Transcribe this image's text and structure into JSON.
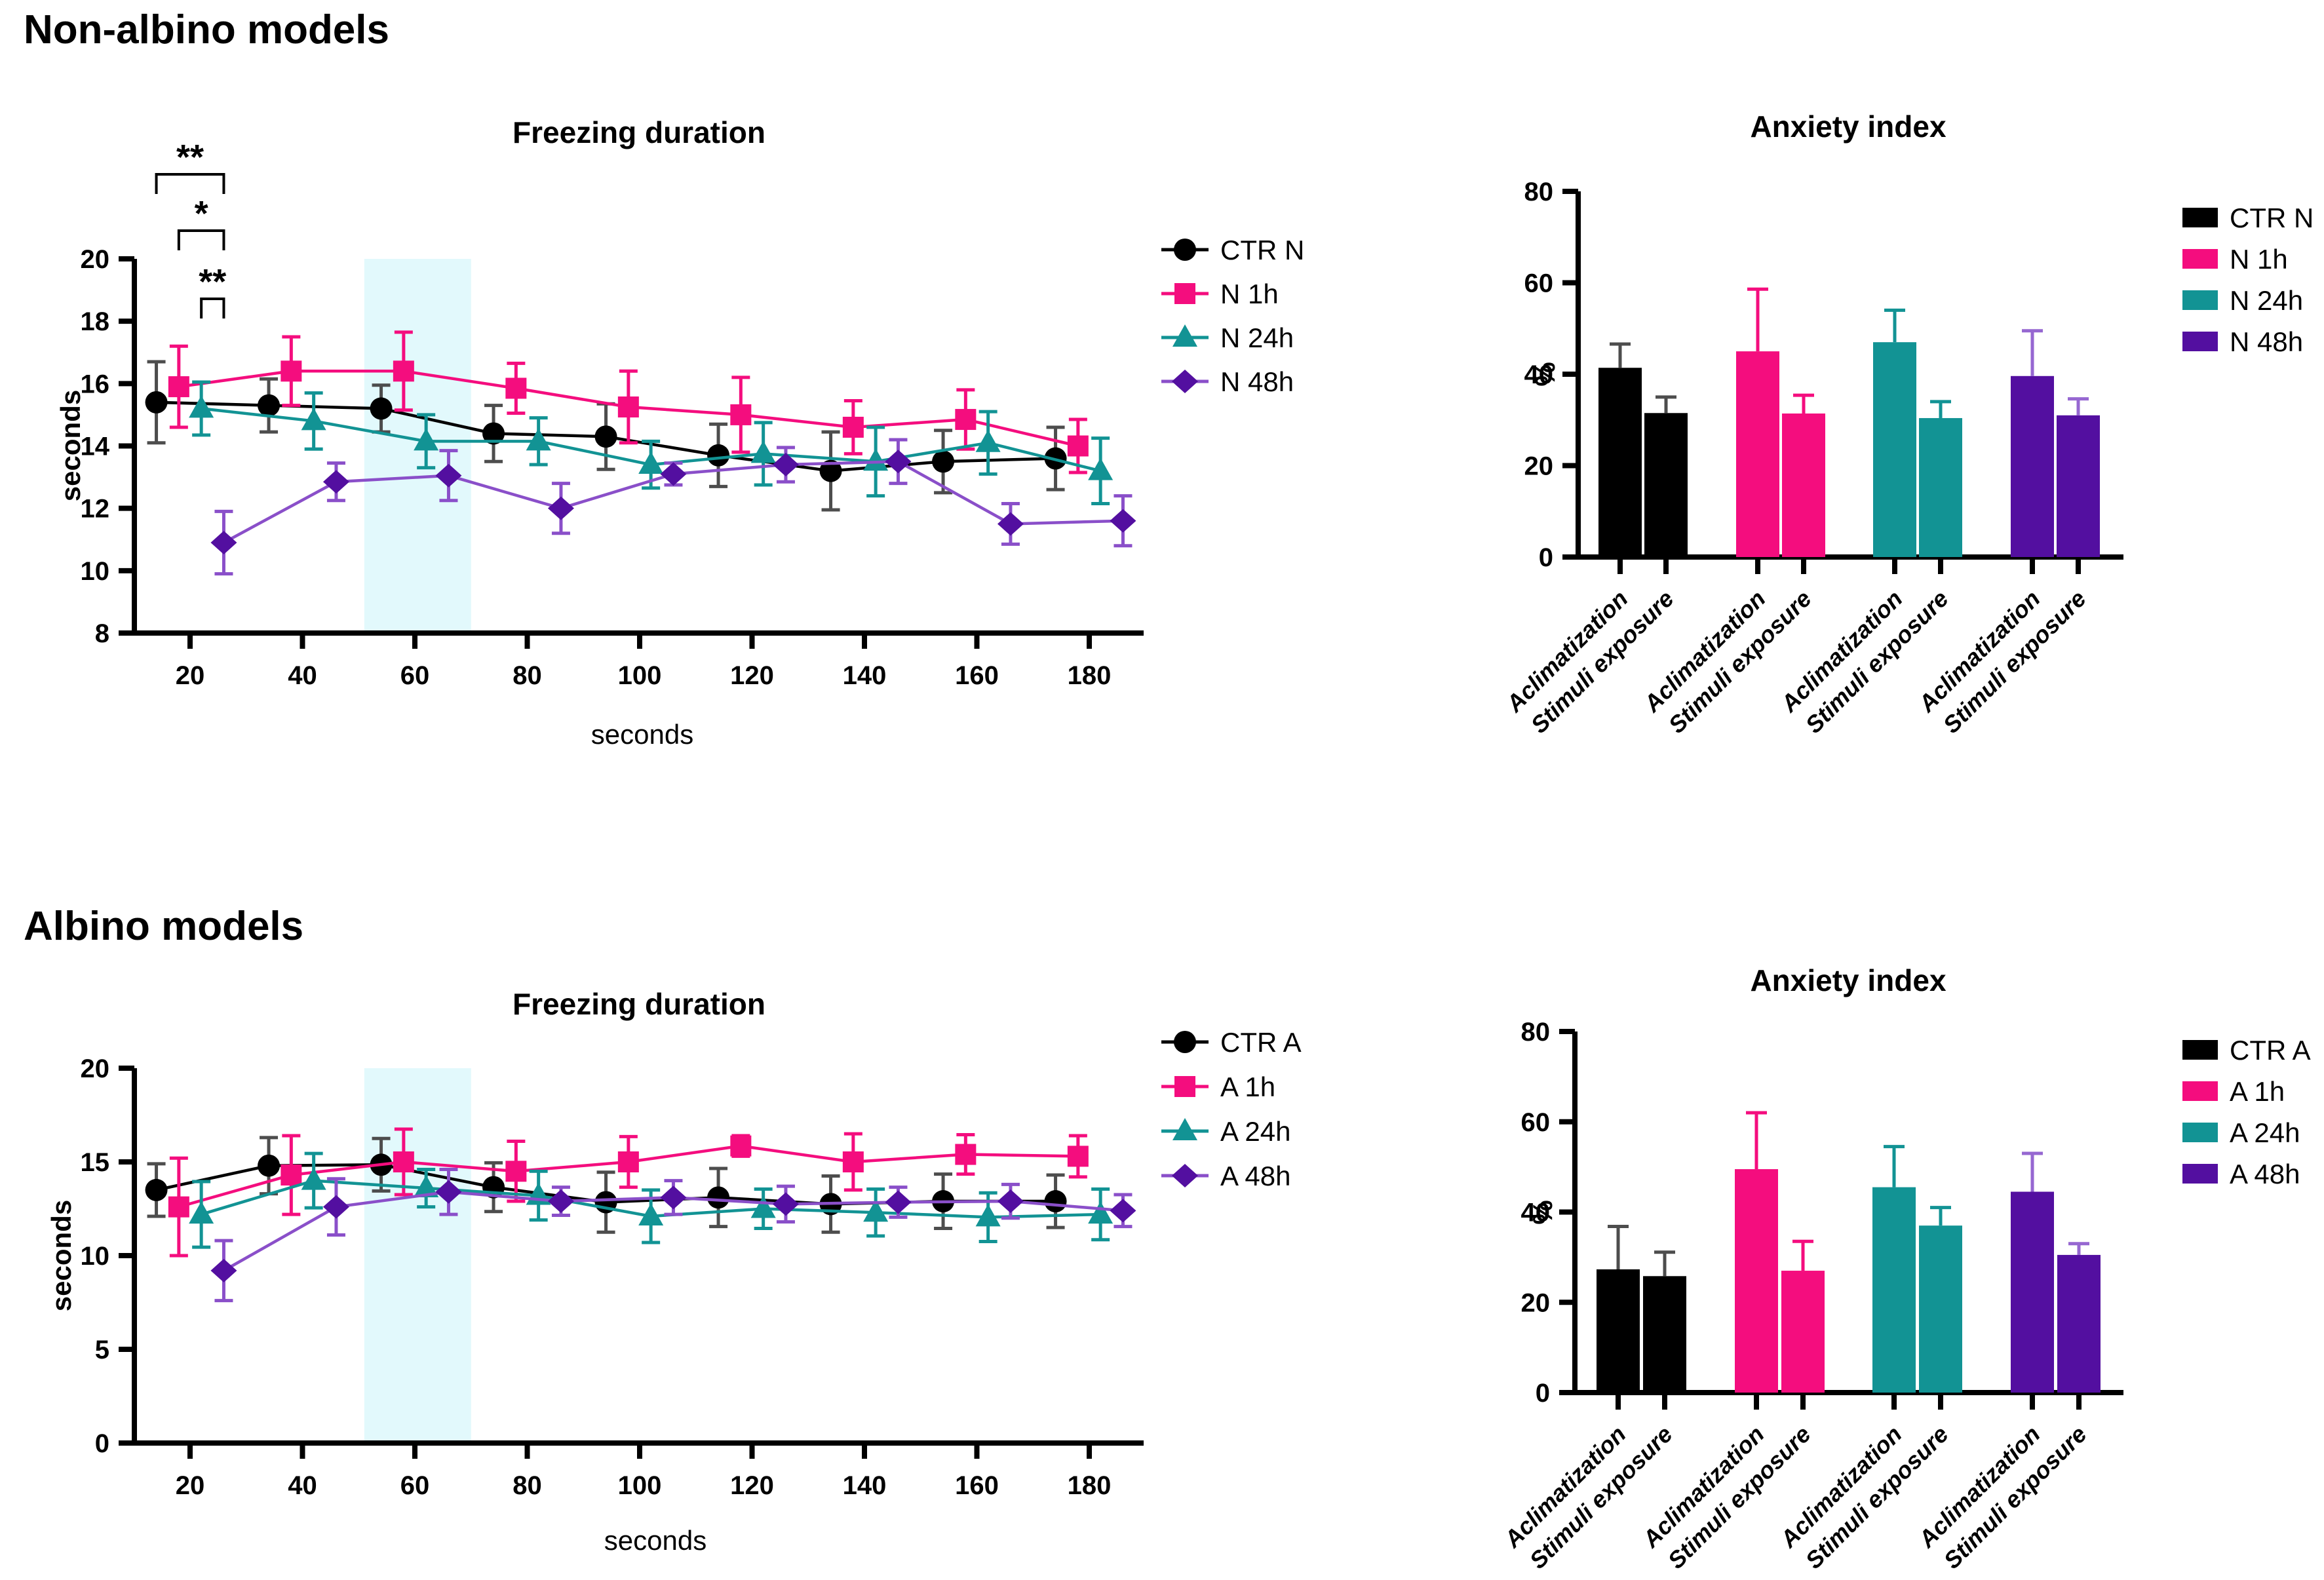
{
  "page": {
    "heading_nonalbino": "Non-albino models",
    "heading_albino": "Albino models"
  },
  "colors": {
    "black": "#000000",
    "black_err": "#4d4d4d",
    "pink": "#F40D7E",
    "teal": "#129394",
    "purple": "#530FA0",
    "purple_line": "#8A4FC9",
    "purple_err": "#9667D1",
    "band": "#E2F9FC"
  },
  "chart_data": [
    {
      "id": "nonalbino-freezing",
      "type": "line",
      "title": "Freezing duration",
      "xlabel": "seconds",
      "ylabel": "seconds",
      "x": [
        20,
        40,
        60,
        80,
        100,
        120,
        140,
        160,
        180
      ],
      "xticks": [
        20,
        40,
        60,
        80,
        100,
        120,
        140,
        160,
        180
      ],
      "yticks": [
        8,
        10,
        12,
        14,
        16,
        18,
        20
      ],
      "ylim": [
        8,
        20
      ],
      "xlim": [
        10,
        190
      ],
      "grid": false,
      "legend_position": "right",
      "shaded_band_x": [
        51,
        70
      ],
      "series": [
        {
          "name": "CTR N",
          "marker": "circle",
          "color": "#000000",
          "line_color": "#000000",
          "err_color": "#4d4d4d",
          "x_offset": -6,
          "values": [
            15.4,
            15.3,
            15.2,
            14.4,
            14.3,
            13.7,
            13.2,
            13.5,
            13.6
          ],
          "errors": [
            1.3,
            0.85,
            0.75,
            0.9,
            1.05,
            1.0,
            1.25,
            1.0,
            1.0
          ]
        },
        {
          "name": "N 1h",
          "marker": "square",
          "color": "#F40D7E",
          "line_color": "#F40D7E",
          "err_color": "#F40D7E",
          "x_offset": -2,
          "values": [
            15.9,
            16.4,
            16.4,
            15.85,
            15.25,
            15.0,
            14.6,
            14.85,
            14.0
          ],
          "errors": [
            1.3,
            1.1,
            1.25,
            0.8,
            1.15,
            1.2,
            0.85,
            0.95,
            0.85
          ]
        },
        {
          "name": "N 24h",
          "marker": "triangle",
          "color": "#129394",
          "line_color": "#129394",
          "err_color": "#129394",
          "x_offset": 2,
          "values": [
            15.2,
            14.8,
            14.15,
            14.15,
            13.4,
            13.75,
            13.5,
            14.1,
            13.2
          ],
          "errors": [
            0.85,
            0.9,
            0.85,
            0.75,
            0.75,
            1.0,
            1.1,
            1.0,
            1.05
          ]
        },
        {
          "name": "N 48h",
          "marker": "diamond",
          "color": "#530FA0",
          "line_color": "#8A4FC9",
          "err_color": "#8A4FC9",
          "x_offset": 6,
          "values": [
            10.9,
            12.85,
            13.05,
            12.0,
            13.1,
            13.4,
            13.5,
            11.5,
            11.6
          ],
          "errors": [
            1.0,
            0.6,
            0.8,
            0.8,
            0.35,
            0.55,
            0.7,
            0.65,
            0.8
          ]
        }
      ],
      "annotations": [
        {
          "type": "bracket",
          "label": "**",
          "x1": 14,
          "x2": 26,
          "level": 1
        },
        {
          "type": "bracket",
          "label": "*",
          "x1": 18,
          "x2": 26,
          "level": 2
        },
        {
          "type": "bracket",
          "label": "**",
          "x1": 22,
          "x2": 26,
          "level": 3
        }
      ]
    },
    {
      "id": "nonalbino-anxiety",
      "type": "bar",
      "title": "Anxiety index",
      "ylabel": "%",
      "ylim": [
        0,
        80
      ],
      "yticks": [
        0,
        20,
        40,
        60,
        80
      ],
      "grid": false,
      "legend_position": "right",
      "categories": [
        "Aclimatization",
        "Stimuli exposure"
      ],
      "groups": [
        {
          "name": "CTR N",
          "color": "#000000",
          "err_color": "#4d4d4d",
          "values": [
            41.4,
            31.5
          ],
          "errors": [
            5.2,
            3.5
          ]
        },
        {
          "name": "N 1h",
          "color": "#F40D7E",
          "err_color": "#F40D7E",
          "values": [
            45.0,
            31.4
          ],
          "errors": [
            13.6,
            4.0
          ]
        },
        {
          "name": "N 24h",
          "color": "#129394",
          "err_color": "#129394",
          "values": [
            47.0,
            30.4
          ],
          "errors": [
            7.0,
            3.6
          ]
        },
        {
          "name": "N 48h",
          "color": "#530FA0",
          "err_color": "#9667D1",
          "values": [
            39.6,
            31.0
          ],
          "errors": [
            9.9,
            3.6
          ]
        }
      ]
    },
    {
      "id": "albino-freezing",
      "type": "line",
      "title": "Freezing duration",
      "xlabel": "seconds",
      "ylabel": "seconds",
      "x": [
        20,
        40,
        60,
        80,
        100,
        120,
        140,
        160,
        180
      ],
      "xticks": [
        20,
        40,
        60,
        80,
        100,
        120,
        140,
        160,
        180
      ],
      "yticks": [
        0,
        5,
        10,
        15,
        20
      ],
      "ylim": [
        0,
        20
      ],
      "xlim": [
        10,
        190
      ],
      "grid": false,
      "legend_position": "right",
      "shaded_band_x": [
        51,
        70
      ],
      "series": [
        {
          "name": "CTR A",
          "marker": "circle",
          "color": "#000000",
          "line_color": "#000000",
          "err_color": "#4d4d4d",
          "x_offset": -6,
          "values": [
            13.5,
            14.8,
            14.85,
            13.65,
            12.85,
            13.1,
            12.75,
            12.9,
            12.9
          ],
          "errors": [
            1.4,
            1.5,
            1.4,
            1.3,
            1.6,
            1.55,
            1.5,
            1.45,
            1.4
          ]
        },
        {
          "name": "A 1h",
          "marker": "square",
          "color": "#F40D7E",
          "line_color": "#F40D7E",
          "err_color": "#F40D7E",
          "x_offset": -2,
          "values": [
            12.6,
            14.3,
            15.0,
            14.5,
            15.0,
            15.85,
            15.0,
            15.4,
            15.3
          ],
          "errors": [
            2.6,
            2.1,
            1.75,
            1.6,
            1.35,
            0.55,
            1.5,
            1.05,
            1.1
          ]
        },
        {
          "name": "A 24h",
          "marker": "triangle",
          "color": "#129394",
          "line_color": "#129394",
          "err_color": "#129394",
          "x_offset": 2,
          "values": [
            12.2,
            14.0,
            13.6,
            13.2,
            12.1,
            12.5,
            12.3,
            12.05,
            12.2
          ],
          "errors": [
            1.75,
            1.45,
            1.0,
            1.3,
            1.4,
            1.05,
            1.25,
            1.3,
            1.35
          ]
        },
        {
          "name": "A 48h",
          "marker": "diamond",
          "color": "#530FA0",
          "line_color": "#8A4FC9",
          "err_color": "#8A4FC9",
          "x_offset": 6,
          "values": [
            9.2,
            12.6,
            13.4,
            12.9,
            13.1,
            12.75,
            12.85,
            12.9,
            12.4
          ],
          "errors": [
            1.6,
            1.5,
            1.2,
            0.75,
            0.9,
            0.95,
            0.8,
            0.9,
            0.85
          ]
        }
      ],
      "annotations": []
    },
    {
      "id": "albino-anxiety",
      "type": "bar",
      "title": "Anxiety index",
      "ylabel": "%",
      "ylim": [
        0,
        80
      ],
      "yticks": [
        0,
        20,
        40,
        60,
        80
      ],
      "grid": false,
      "legend_position": "right",
      "categories": [
        "Aclimatization",
        "Stimuli exposure"
      ],
      "groups": [
        {
          "name": "CTR A",
          "color": "#000000",
          "err_color": "#4d4d4d",
          "values": [
            27.3,
            25.8
          ],
          "errors": [
            9.5,
            5.3
          ]
        },
        {
          "name": "A 1h",
          "color": "#F40D7E",
          "err_color": "#F40D7E",
          "values": [
            49.5,
            27.0
          ],
          "errors": [
            12.5,
            6.5
          ]
        },
        {
          "name": "A 24h",
          "color": "#129394",
          "err_color": "#129394",
          "values": [
            45.5,
            37.0
          ],
          "errors": [
            9.0,
            4.0
          ]
        },
        {
          "name": "A 48h",
          "color": "#530FA0",
          "err_color": "#9667D1",
          "values": [
            44.5,
            30.5
          ],
          "errors": [
            8.5,
            2.5
          ]
        }
      ]
    }
  ]
}
